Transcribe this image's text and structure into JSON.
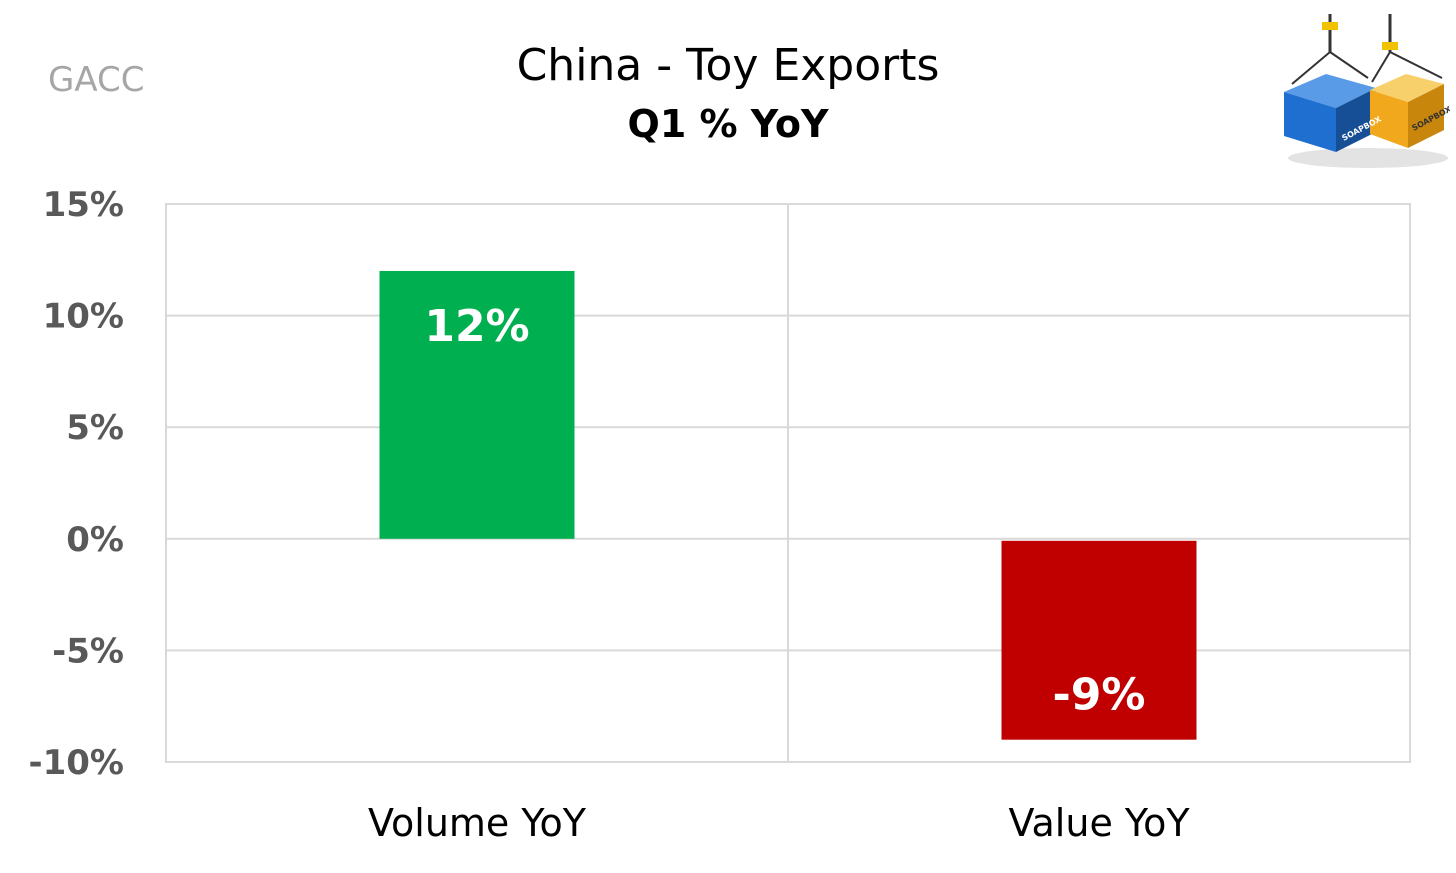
{
  "source_label": "GACC",
  "logo": {
    "text_left": "SOAPBOX",
    "text_right": "SOAPBOX",
    "colors": {
      "left_container": "#1f6fd1",
      "right_container": "#f2a81d",
      "crane": "#1a1a1a"
    }
  },
  "colors": {
    "positive": "#00b050",
    "negative": "#c00000",
    "grid": "#d9d9d9",
    "tick_text": "#595959"
  },
  "chart_data": {
    "type": "bar",
    "title": "China - Toy Exports",
    "subtitle": "Q1 % YoY",
    "categories": [
      "Volume YoY",
      "Value YoY"
    ],
    "values": [
      12,
      -9
    ],
    "data_labels": [
      "12%",
      "-9%"
    ],
    "ylim": [
      -10,
      15
    ],
    "yticks": [
      15,
      10,
      5,
      0,
      -5,
      -10
    ],
    "ytick_labels": [
      "15%",
      "10%",
      "5%",
      "0%",
      "-5%",
      "-10%"
    ],
    "grid": true,
    "legend": "none"
  }
}
